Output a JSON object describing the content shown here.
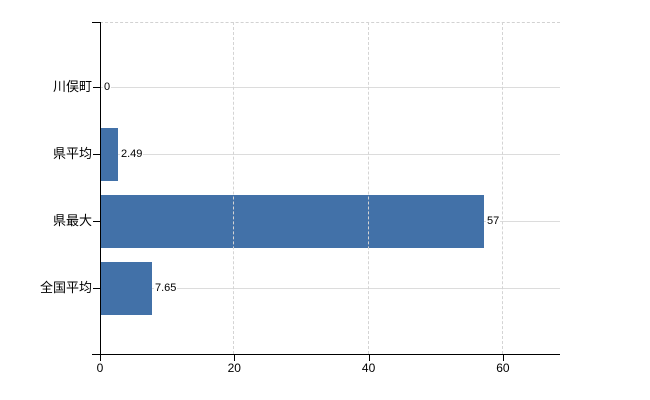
{
  "chart_data": {
    "type": "bar",
    "orientation": "horizontal",
    "title": "",
    "xlabel": "",
    "ylabel": "",
    "categories": [
      "川俣町",
      "県平均",
      "県最大",
      "全国平均"
    ],
    "values": [
      0,
      2.49,
      57,
      7.65
    ],
    "value_labels": [
      "0",
      "2.49",
      "57",
      "7.65"
    ],
    "x_ticks": [
      0,
      20,
      40,
      60
    ],
    "x_tick_labels": [
      "0",
      "20",
      "40",
      "60"
    ],
    "xlim": [
      0,
      68.5
    ],
    "grid": true,
    "legend": false,
    "bar_color": "#4271a8",
    "axis_color": "#000000",
    "gridline_color": "#dcdcdc",
    "background_color": "#ffffff"
  }
}
